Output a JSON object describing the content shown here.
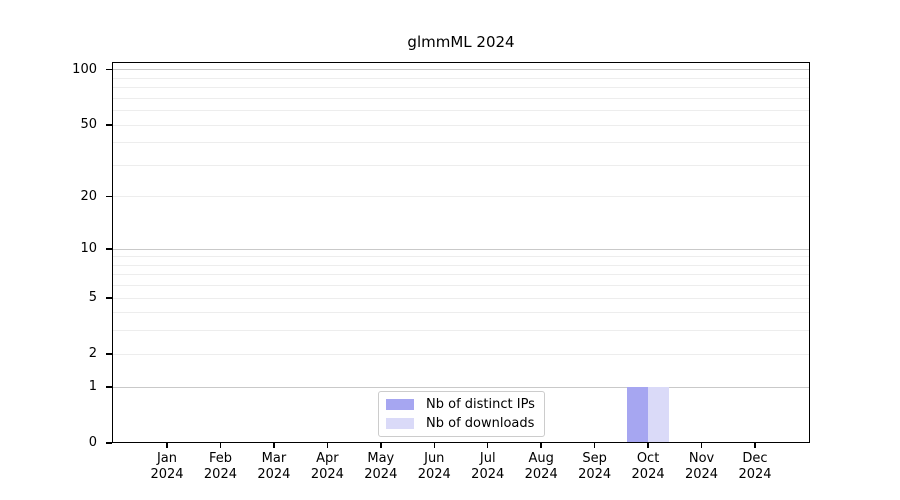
{
  "chart_data": {
    "type": "bar",
    "title": "glmmML 2024",
    "categories": [
      "Jan",
      "Feb",
      "Mar",
      "Apr",
      "May",
      "Jun",
      "Jul",
      "Aug",
      "Sep",
      "Oct",
      "Nov",
      "Dec"
    ],
    "x_year": "2024",
    "series": [
      {
        "name": "Nb of distinct IPs",
        "color": "#a6a6f1",
        "values": [
          0,
          0,
          0,
          0,
          0,
          0,
          0,
          0,
          0,
          1,
          0,
          0
        ]
      },
      {
        "name": "Nb of downloads",
        "color": "#dadaf8",
        "values": [
          0,
          0,
          0,
          0,
          0,
          0,
          0,
          0,
          0,
          1,
          0,
          0
        ]
      }
    ],
    "yscale": "log1p",
    "ylim": [
      0,
      110
    ],
    "ytick_labels": [
      "100",
      "50",
      "20",
      "10",
      "5",
      "2",
      "1",
      "0"
    ],
    "ytick_values": [
      100,
      50,
      20,
      10,
      5,
      2,
      1,
      0
    ],
    "grid_major": [
      1,
      10,
      100
    ],
    "grid_minor": [
      2,
      3,
      4,
      5,
      6,
      7,
      8,
      9,
      20,
      30,
      40,
      50,
      60,
      70,
      80,
      90
    ],
    "legend_position": "inside-bottom-center",
    "xlabel": "",
    "ylabel": ""
  },
  "colors": {
    "background": "#ffffff",
    "axis": "#000000",
    "grid_major": "#c9c9c9",
    "grid_minor": "#ededed",
    "legend_border": "#cccccc",
    "text": "#000000"
  }
}
